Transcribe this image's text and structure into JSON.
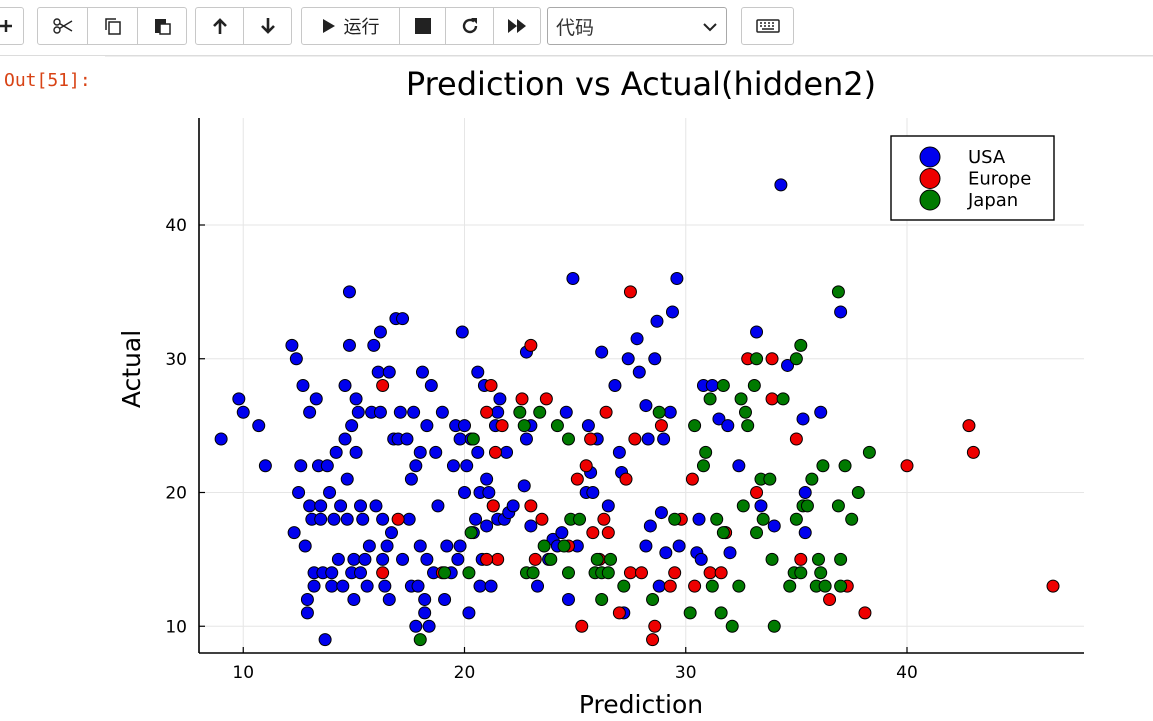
{
  "toolbar": {
    "run_label": "运行",
    "cell_type": "代码"
  },
  "output": {
    "prompt": "Out[51]:"
  },
  "colors": {
    "USA": "#0000ee",
    "Europe": "#ee0000",
    "Japan": "#007a00"
  },
  "chart_data": {
    "type": "scatter",
    "title": "Prediction vs Actual(hidden2)",
    "xlabel": "Prediction",
    "ylabel": "Actual",
    "xlim": [
      8,
      48
    ],
    "ylim": [
      8,
      48
    ],
    "xticks": [
      10,
      20,
      30,
      40
    ],
    "yticks": [
      10,
      20,
      30,
      40
    ],
    "grid": true,
    "legend_position": "top-right",
    "series": [
      {
        "name": "USA",
        "points": [
          [
            9,
            24
          ],
          [
            9.8,
            27
          ],
          [
            10,
            26
          ],
          [
            10.7,
            25
          ],
          [
            11,
            22
          ],
          [
            12.2,
            31
          ],
          [
            12.4,
            30
          ],
          [
            12.3,
            17
          ],
          [
            12.5,
            20
          ],
          [
            12.6,
            22
          ],
          [
            12.7,
            28
          ],
          [
            12.8,
            16
          ],
          [
            12.9,
            11
          ],
          [
            12.9,
            12
          ],
          [
            13,
            19
          ],
          [
            13,
            26
          ],
          [
            13.1,
            18
          ],
          [
            13.2,
            14
          ],
          [
            13.2,
            13
          ],
          [
            13.3,
            27
          ],
          [
            13.4,
            22
          ],
          [
            13.5,
            19
          ],
          [
            13.5,
            18
          ],
          [
            13.6,
            14
          ],
          [
            13.7,
            9
          ],
          [
            13.8,
            22
          ],
          [
            13.9,
            20
          ],
          [
            14,
            14
          ],
          [
            14,
            13
          ],
          [
            14.1,
            18
          ],
          [
            14.2,
            23
          ],
          [
            14.3,
            15
          ],
          [
            14.4,
            19
          ],
          [
            14.5,
            13
          ],
          [
            14.6,
            28
          ],
          [
            14.6,
            24
          ],
          [
            14.7,
            18
          ],
          [
            14.7,
            21
          ],
          [
            14.8,
            35
          ],
          [
            14.8,
            31
          ],
          [
            14.9,
            14
          ],
          [
            14.9,
            25
          ],
          [
            15,
            15
          ],
          [
            15,
            12
          ],
          [
            15.1,
            27
          ],
          [
            15.1,
            23
          ],
          [
            15.2,
            26
          ],
          [
            15.3,
            19
          ],
          [
            15.3,
            14
          ],
          [
            15.4,
            18
          ],
          [
            15.5,
            15
          ],
          [
            15.6,
            13
          ],
          [
            15.7,
            16
          ],
          [
            15.8,
            26
          ],
          [
            15.9,
            31
          ],
          [
            16,
            19
          ],
          [
            16.1,
            29
          ],
          [
            16.2,
            26
          ],
          [
            16.2,
            32
          ],
          [
            16.3,
            15
          ],
          [
            16.3,
            18
          ],
          [
            16.4,
            13
          ],
          [
            16.5,
            16
          ],
          [
            16.6,
            12
          ],
          [
            16.6,
            29
          ],
          [
            16.7,
            17
          ],
          [
            16.8,
            24
          ],
          [
            16.9,
            33
          ],
          [
            17,
            24
          ],
          [
            17.1,
            26
          ],
          [
            17.2,
            33
          ],
          [
            17.2,
            15
          ],
          [
            17.4,
            24
          ],
          [
            17.5,
            18
          ],
          [
            17.6,
            13
          ],
          [
            17.6,
            21
          ],
          [
            17.7,
            26
          ],
          [
            17.8,
            10
          ],
          [
            17.8,
            22
          ],
          [
            17.9,
            13
          ],
          [
            18,
            23
          ],
          [
            18,
            16
          ],
          [
            18.1,
            29
          ],
          [
            18.2,
            11
          ],
          [
            18.2,
            12
          ],
          [
            18.3,
            25
          ],
          [
            18.3,
            15
          ],
          [
            18.4,
            10
          ],
          [
            18.5,
            28
          ],
          [
            18.6,
            14
          ],
          [
            18.7,
            23
          ],
          [
            18.8,
            19
          ],
          [
            19,
            26
          ],
          [
            19.1,
            12
          ],
          [
            19.2,
            16
          ],
          [
            19.4,
            14
          ],
          [
            19.5,
            22
          ],
          [
            19.6,
            25
          ],
          [
            19.7,
            15
          ],
          [
            19.8,
            16
          ],
          [
            19.8,
            24
          ],
          [
            19.9,
            32
          ],
          [
            20,
            20
          ],
          [
            20,
            25
          ],
          [
            20.1,
            22
          ],
          [
            20.2,
            11
          ],
          [
            20.3,
            24
          ],
          [
            20.4,
            17
          ],
          [
            20.5,
            18
          ],
          [
            20.6,
            23
          ],
          [
            20.6,
            29
          ],
          [
            20.7,
            13
          ],
          [
            20.7,
            20
          ],
          [
            20.8,
            15
          ],
          [
            20.9,
            28
          ],
          [
            21,
            17.5
          ],
          [
            21,
            21
          ],
          [
            21.1,
            20
          ],
          [
            21.2,
            13
          ],
          [
            21.3,
            19
          ],
          [
            21.4,
            25
          ],
          [
            21.5,
            18
          ],
          [
            21.5,
            26
          ],
          [
            21.6,
            27
          ],
          [
            21.8,
            18
          ],
          [
            21.9,
            23
          ],
          [
            22,
            18.5
          ],
          [
            22.2,
            19
          ],
          [
            22.7,
            20.5
          ],
          [
            22.8,
            30.5
          ],
          [
            22.8,
            24
          ],
          [
            23,
            25
          ],
          [
            23,
            17.5
          ],
          [
            23.3,
            13
          ],
          [
            23.8,
            15
          ],
          [
            24,
            16.5
          ],
          [
            24.2,
            16
          ],
          [
            24.4,
            17
          ],
          [
            24.6,
            26
          ],
          [
            24.7,
            12
          ],
          [
            24.9,
            36
          ],
          [
            25.1,
            16
          ],
          [
            25.5,
            20
          ],
          [
            25.6,
            25
          ],
          [
            25.7,
            21.5
          ],
          [
            25.8,
            20
          ],
          [
            26,
            24
          ],
          [
            26.2,
            30.5
          ],
          [
            26.5,
            19
          ],
          [
            26.8,
            28
          ],
          [
            27,
            23
          ],
          [
            27.1,
            21.5
          ],
          [
            27.2,
            11
          ],
          [
            27.4,
            30
          ],
          [
            27.8,
            31.5
          ],
          [
            27.9,
            29
          ],
          [
            28.2,
            26.5
          ],
          [
            28.2,
            16
          ],
          [
            28.3,
            24
          ],
          [
            28.4,
            17.5
          ],
          [
            28.6,
            30
          ],
          [
            28.7,
            32.8
          ],
          [
            28.8,
            13
          ],
          [
            28.9,
            18.5
          ],
          [
            29,
            24
          ],
          [
            29.1,
            15.5
          ],
          [
            29.3,
            26
          ],
          [
            29.4,
            33.5
          ],
          [
            29.6,
            36
          ],
          [
            29.7,
            16
          ],
          [
            30.5,
            15.5
          ],
          [
            30.6,
            18
          ],
          [
            30.7,
            15
          ],
          [
            30.8,
            28
          ],
          [
            31.2,
            28
          ],
          [
            31.5,
            25.5
          ],
          [
            31.8,
            17
          ],
          [
            31.9,
            25
          ],
          [
            32,
            15.5
          ],
          [
            32.4,
            22
          ],
          [
            33.2,
            32
          ],
          [
            33.4,
            19
          ],
          [
            34,
            17.5
          ],
          [
            34.3,
            43
          ],
          [
            34.6,
            29.5
          ],
          [
            35.3,
            25.5
          ],
          [
            35.4,
            20
          ],
          [
            35.4,
            17
          ],
          [
            36.1,
            26
          ],
          [
            37,
            33.5
          ]
        ]
      },
      {
        "name": "Europe",
        "points": [
          [
            16.3,
            28
          ],
          [
            16.3,
            14
          ],
          [
            17,
            18
          ],
          [
            19,
            14
          ],
          [
            21,
            26
          ],
          [
            21.2,
            28
          ],
          [
            21.3,
            19
          ],
          [
            21.4,
            23
          ],
          [
            21.5,
            15
          ],
          [
            21.7,
            25
          ],
          [
            21,
            15
          ],
          [
            22.6,
            27
          ],
          [
            23,
            31
          ],
          [
            23,
            19
          ],
          [
            23.2,
            15
          ],
          [
            23.5,
            18
          ],
          [
            23.7,
            27
          ],
          [
            24.7,
            16
          ],
          [
            25.1,
            21
          ],
          [
            25.3,
            10
          ],
          [
            25.5,
            22
          ],
          [
            25.7,
            24
          ],
          [
            25.8,
            17
          ],
          [
            26.1,
            15
          ],
          [
            26.3,
            18
          ],
          [
            26.4,
            26
          ],
          [
            26.5,
            17
          ],
          [
            27.3,
            21
          ],
          [
            27,
            11
          ],
          [
            27.5,
            14
          ],
          [
            27.5,
            35
          ],
          [
            27.7,
            24
          ],
          [
            28,
            14
          ],
          [
            28.5,
            9
          ],
          [
            28.6,
            10
          ],
          [
            28.9,
            25
          ],
          [
            29.3,
            13
          ],
          [
            29.5,
            14
          ],
          [
            29.8,
            18
          ],
          [
            30.3,
            21
          ],
          [
            30.4,
            13
          ],
          [
            31.1,
            14
          ],
          [
            31.6,
            14
          ],
          [
            31.8,
            17
          ],
          [
            32.8,
            30
          ],
          [
            33.2,
            20
          ],
          [
            33.9,
            30
          ],
          [
            33.9,
            27
          ],
          [
            35,
            24
          ],
          [
            35.2,
            15
          ],
          [
            36.5,
            12
          ],
          [
            37.3,
            13
          ],
          [
            38.1,
            11
          ],
          [
            40,
            22
          ],
          [
            42.8,
            25
          ],
          [
            43,
            23
          ],
          [
            46.6,
            13
          ]
        ]
      },
      {
        "name": "Japan",
        "points": [
          [
            18,
            9
          ],
          [
            19.1,
            14
          ],
          [
            20.2,
            14
          ],
          [
            20.3,
            17
          ],
          [
            20.4,
            24
          ],
          [
            22.5,
            26
          ],
          [
            22.7,
            25
          ],
          [
            22.8,
            14
          ],
          [
            23.1,
            14
          ],
          [
            23.4,
            26
          ],
          [
            23.6,
            16
          ],
          [
            23.9,
            15
          ],
          [
            24.2,
            25
          ],
          [
            24.5,
            16
          ],
          [
            24.7,
            14
          ],
          [
            24.7,
            24
          ],
          [
            24.8,
            18
          ],
          [
            25.2,
            18
          ],
          [
            25.9,
            14
          ],
          [
            26.2,
            14
          ],
          [
            26,
            15
          ],
          [
            26.2,
            12
          ],
          [
            26.5,
            14
          ],
          [
            26.6,
            15
          ],
          [
            27.2,
            13
          ],
          [
            28.5,
            12
          ],
          [
            28.8,
            26
          ],
          [
            29.5,
            18
          ],
          [
            30.2,
            11
          ],
          [
            30.4,
            25
          ],
          [
            30.8,
            22
          ],
          [
            30.9,
            23
          ],
          [
            31.1,
            27
          ],
          [
            31.2,
            13
          ],
          [
            31.4,
            18
          ],
          [
            31.6,
            11
          ],
          [
            31.7,
            28
          ],
          [
            31.7,
            17
          ],
          [
            32.1,
            10
          ],
          [
            32.4,
            13
          ],
          [
            32.5,
            27
          ],
          [
            32.6,
            19
          ],
          [
            32.7,
            26
          ],
          [
            32.8,
            25
          ],
          [
            33.1,
            28
          ],
          [
            33.2,
            17
          ],
          [
            33.2,
            30
          ],
          [
            33.4,
            21
          ],
          [
            33.5,
            18
          ],
          [
            33.8,
            21
          ],
          [
            33.9,
            15
          ],
          [
            34,
            10
          ],
          [
            34.4,
            27
          ],
          [
            34.7,
            13
          ],
          [
            34.9,
            14
          ],
          [
            35,
            30
          ],
          [
            35,
            18
          ],
          [
            35.2,
            14
          ],
          [
            35.2,
            31
          ],
          [
            35.3,
            19
          ],
          [
            35.5,
            19
          ],
          [
            35.7,
            21
          ],
          [
            35.9,
            13
          ],
          [
            36,
            15
          ],
          [
            36.1,
            14
          ],
          [
            36.2,
            22
          ],
          [
            36.3,
            13
          ],
          [
            36.9,
            19
          ],
          [
            36.9,
            35
          ],
          [
            37,
            13
          ],
          [
            37,
            15
          ],
          [
            37.2,
            22
          ],
          [
            37.5,
            18
          ],
          [
            37.8,
            20
          ],
          [
            38.3,
            23
          ]
        ]
      }
    ]
  }
}
